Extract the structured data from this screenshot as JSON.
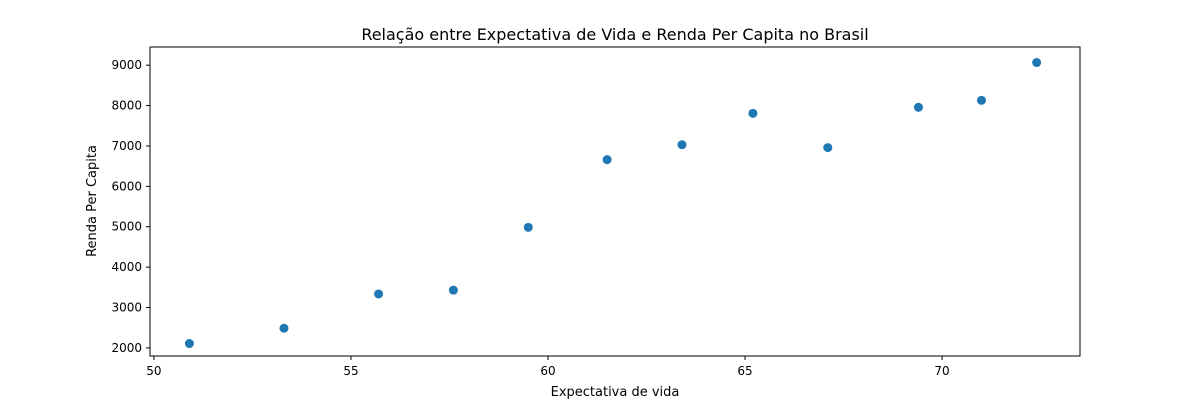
{
  "chart_data": {
    "type": "scatter",
    "title": "Relação entre Expectativa de Vida e Renda Per Capita no Brasil",
    "xlabel": "Expectativa de vida",
    "ylabel": "Renda Per Capita",
    "xlim": [
      49.9,
      73.5
    ],
    "ylim": [
      1800,
      9450
    ],
    "xticks": [
      50,
      55,
      60,
      65,
      70
    ],
    "yticks": [
      2000,
      3000,
      4000,
      5000,
      6000,
      7000,
      8000,
      9000
    ],
    "grid": false,
    "series": [
      {
        "color": "#1f77b4",
        "points": [
          {
            "x": 50.9,
            "y": 2108
          },
          {
            "x": 53.3,
            "y": 2487
          },
          {
            "x": 55.7,
            "y": 3336
          },
          {
            "x": 57.6,
            "y": 3430
          },
          {
            "x": 59.5,
            "y": 4985
          },
          {
            "x": 61.5,
            "y": 6661
          },
          {
            "x": 63.4,
            "y": 7031
          },
          {
            "x": 65.2,
            "y": 7807
          },
          {
            "x": 67.1,
            "y": 6960
          },
          {
            "x": 69.4,
            "y": 7957
          },
          {
            "x": 71.0,
            "y": 8130
          },
          {
            "x": 72.4,
            "y": 9066
          }
        ]
      }
    ]
  }
}
